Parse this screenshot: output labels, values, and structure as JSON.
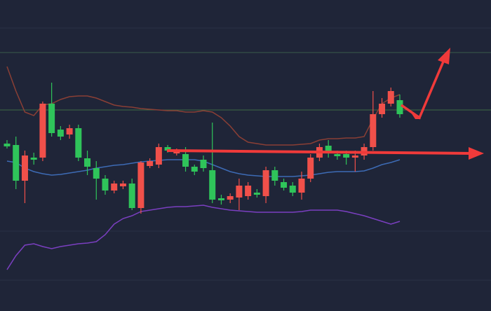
{
  "chart_data": {
    "type": "candlestick",
    "ylim": [
      0,
      444
    ],
    "background": "#1f2538",
    "up_color": "#f0504a",
    "down_color": "#2fc45a",
    "open": [
      239,
      237,
      186,
      219,
      219,
      296,
      259,
      252,
      261,
      218,
      204,
      189,
      172,
      178,
      182,
      147,
      207,
      209,
      234,
      225,
      224,
      206,
      216,
      201,
      161,
      159,
      162,
      164,
      169,
      164,
      201,
      184,
      179,
      169,
      189,
      219,
      236,
      224,
      224,
      219,
      222,
      234,
      281,
      296,
      301
    ],
    "high": [
      244,
      249,
      229,
      226,
      299,
      326,
      264,
      266,
      266,
      229,
      214,
      194,
      186,
      186,
      189,
      214,
      218,
      239,
      237,
      232,
      234,
      209,
      222,
      269,
      166,
      168,
      189,
      184,
      174,
      206,
      206,
      189,
      184,
      199,
      224,
      239,
      244,
      229,
      229,
      229,
      239,
      314,
      304,
      319,
      309
    ],
    "low": [
      232,
      174,
      154,
      209,
      214,
      249,
      244,
      246,
      214,
      194,
      159,
      166,
      168,
      174,
      144,
      139,
      204,
      204,
      226,
      222,
      199,
      194,
      199,
      154,
      152,
      154,
      144,
      159,
      162,
      154,
      179,
      172,
      164,
      159,
      184,
      214,
      219,
      216,
      209,
      199,
      216,
      229,
      276,
      292,
      276
    ],
    "close": [
      235,
      186,
      222,
      216,
      296,
      254,
      249,
      261,
      219,
      206,
      189,
      172,
      182,
      182,
      147,
      212,
      214,
      234,
      229,
      229,
      206,
      199,
      204,
      159,
      158,
      164,
      179,
      179,
      166,
      201,
      186,
      176,
      169,
      189,
      219,
      234,
      226,
      221,
      219,
      222,
      234,
      281,
      296,
      314,
      281
    ],
    "series": [
      {
        "color": "#8a3f35",
        "values": [
          349,
          314,
          284,
          279,
          294,
          296,
          302,
          306,
          307,
          307,
          304,
          299,
          294,
          292,
          291,
          289,
          288,
          287,
          286,
          286,
          284,
          284,
          286,
          284,
          276,
          264,
          249,
          241,
          239,
          237,
          237,
          237,
          237,
          238,
          239,
          244,
          246,
          246,
          247,
          247,
          249,
          274,
          296,
          304,
          309
        ]
      },
      {
        "color": "#3d6bb5",
        "values": [
          214,
          212,
          204,
          199,
          196,
          194,
          195,
          197,
          199,
          201,
          204,
          206,
          208,
          209,
          211,
          213,
          214,
          215,
          216,
          216,
          216,
          216,
          214,
          209,
          204,
          199,
          196,
          194,
          193,
          192,
          192,
          192,
          192,
          193,
          194,
          196,
          198,
          199,
          199,
          199,
          200,
          204,
          209,
          212,
          216
        ]
      },
      {
        "color": "#7a3fc0",
        "values": [
          59,
          79,
          94,
          96,
          92,
          89,
          92,
          94,
          96,
          97,
          99,
          109,
          124,
          132,
          136,
          142,
          144,
          146,
          148,
          149,
          149,
          150,
          151,
          148,
          146,
          144,
          143,
          142,
          141,
          141,
          141,
          141,
          141,
          142,
          144,
          144,
          144,
          144,
          142,
          139,
          136,
          132,
          128,
          124,
          128
        ]
      }
    ]
  }
}
